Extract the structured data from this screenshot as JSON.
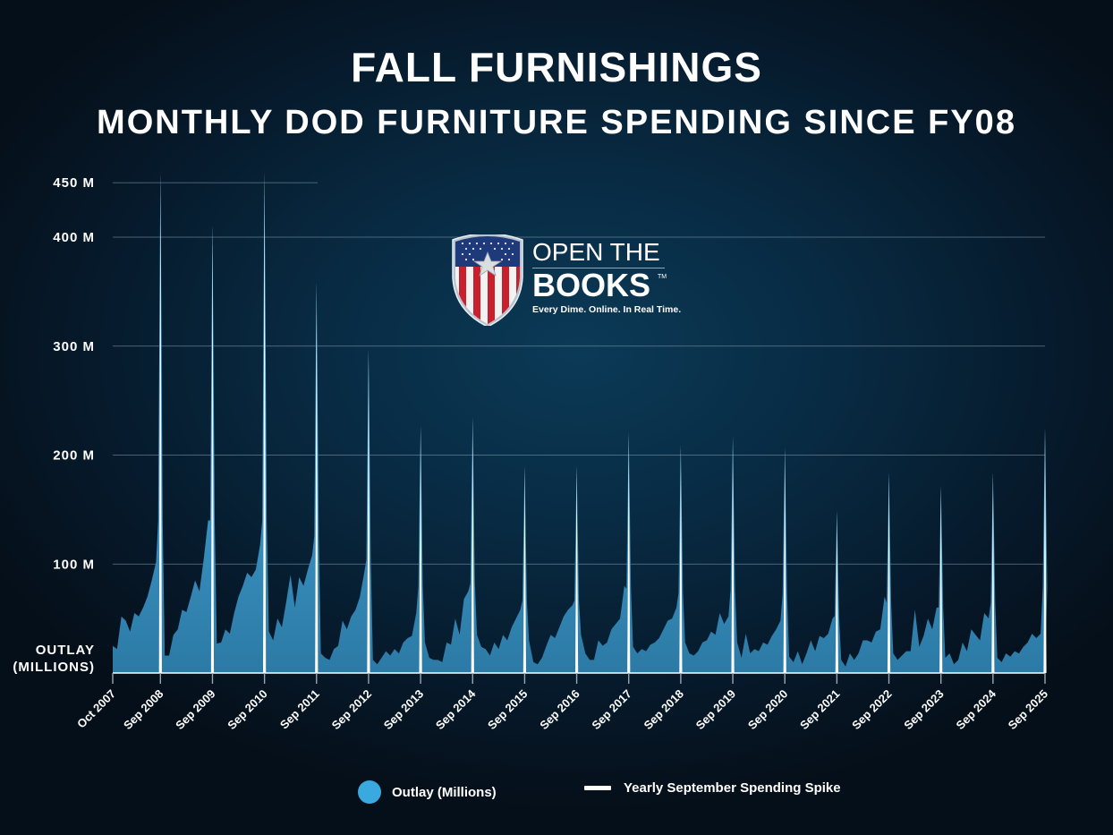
{
  "title": "FALL FURNISHINGS",
  "subtitle": "MONTHLY DOD FURNITURE SPENDING SINCE FY08",
  "logo": {
    "line1": "OPEN THE",
    "line2": "BOOKS",
    "trademark": "TM",
    "tagline": "Every Dime. Online. In Real Time."
  },
  "y_axis_title": [
    "OUTLAY",
    "(MILLIONS)"
  ],
  "legend": {
    "outlay": "Outlay (Millions)",
    "spike": "Yearly September Spending Spike"
  },
  "colors": {
    "area_top": "#4fb8ec",
    "area_bottom": "#2e7fae",
    "spike": "#ffffff",
    "grid": "#7f98aa"
  },
  "chart_data": {
    "type": "area",
    "title": "FALL FURNISHINGS",
    "subtitle": "MONTHLY DOD FURNITURE SPENDING SINCE FY08",
    "xlabel": "",
    "ylabel": "OUTLAY (MILLIONS)",
    "ylim": [
      0,
      460
    ],
    "yticks": [
      100,
      200,
      300,
      400,
      450
    ],
    "ytick_labels": [
      "100 M",
      "200 M",
      "300 M",
      "400 M",
      "450 M"
    ],
    "grid": true,
    "legend_position": "bottom",
    "x_tick_labels": [
      "Oct 2007",
      "Sep 2008",
      "Sep 2009",
      "Sep 2010",
      "Sep 2011",
      "Sep 2012",
      "Sep 2013",
      "Sep 2014",
      "Sep 2015",
      "Sep 2016",
      "Sep 2017",
      "Sep 2018",
      "Sep 2019",
      "Sep 2020",
      "Sep 2021",
      "Sep 2022",
      "Sep 2023",
      "Sep 2024",
      "Sep 2025"
    ],
    "series": [
      {
        "name": "Outlay (Millions)",
        "note": "monthly values Oct 2007 - Sep 2025, grouped by fiscal year (Oct..Sep)",
        "fiscal_years": {
          "FY08": [
            25,
            22,
            52,
            48,
            38,
            55,
            52,
            60,
            70,
            85,
            102,
            460
          ],
          "FY09": [
            16,
            16,
            35,
            40,
            58,
            56,
            70,
            85,
            75,
            105,
            140,
            412
          ],
          "FY10": [
            27,
            28,
            40,
            36,
            55,
            70,
            80,
            92,
            88,
            95,
            118,
            461
          ],
          "FY11": [
            38,
            30,
            50,
            42,
            65,
            90,
            60,
            88,
            80,
            95,
            108,
            359
          ],
          "FY12": [
            18,
            14,
            12,
            22,
            25,
            48,
            40,
            52,
            58,
            70,
            92,
            297
          ],
          "FY13": [
            12,
            8,
            14,
            20,
            16,
            22,
            18,
            28,
            32,
            34,
            55,
            227
          ],
          "FY14": [
            28,
            14,
            12,
            12,
            10,
            28,
            26,
            50,
            35,
            68,
            75,
            235
          ],
          "FY15": [
            35,
            24,
            22,
            16,
            28,
            22,
            35,
            30,
            42,
            50,
            58,
            190
          ],
          "FY16": [
            30,
            10,
            8,
            14,
            25,
            35,
            32,
            42,
            52,
            58,
            62,
            190
          ],
          "FY17": [
            35,
            18,
            12,
            12,
            30,
            25,
            28,
            40,
            45,
            50,
            80,
            221
          ],
          "FY18": [
            24,
            18,
            22,
            20,
            26,
            28,
            32,
            40,
            48,
            50,
            60,
            209
          ],
          "FY19": [
            28,
            18,
            16,
            20,
            28,
            30,
            38,
            35,
            55,
            45,
            52,
            217
          ],
          "FY20": [
            28,
            14,
            36,
            18,
            22,
            20,
            28,
            26,
            34,
            40,
            48,
            207
          ],
          "FY21": [
            15,
            10,
            20,
            8,
            18,
            30,
            20,
            34,
            32,
            36,
            50,
            149
          ],
          "FY22": [
            12,
            6,
            18,
            12,
            18,
            30,
            30,
            28,
            38,
            40,
            70,
            184
          ],
          "FY23": [
            18,
            12,
            16,
            20,
            20,
            58,
            24,
            34,
            50,
            40,
            60,
            172
          ],
          "FY24": [
            14,
            18,
            8,
            12,
            28,
            20,
            40,
            35,
            30,
            55,
            50,
            184
          ],
          "FY25": [
            14,
            10,
            18,
            15,
            20,
            18,
            24,
            28,
            36,
            32,
            36,
            225
          ]
        }
      },
      {
        "name": "Yearly September Spending Spike",
        "x": [
          "Sep 2008",
          "Sep 2009",
          "Sep 2010",
          "Sep 2011",
          "Sep 2012",
          "Sep 2013",
          "Sep 2014",
          "Sep 2015",
          "Sep 2016",
          "Sep 2017",
          "Sep 2018",
          "Sep 2019",
          "Sep 2020",
          "Sep 2021",
          "Sep 2022",
          "Sep 2023",
          "Sep 2024",
          "Sep 2025"
        ],
        "values": [
          460,
          412,
          461,
          359,
          297,
          227,
          235,
          190,
          190,
          221,
          209,
          217,
          207,
          149,
          184,
          172,
          184,
          225
        ]
      }
    ]
  }
}
